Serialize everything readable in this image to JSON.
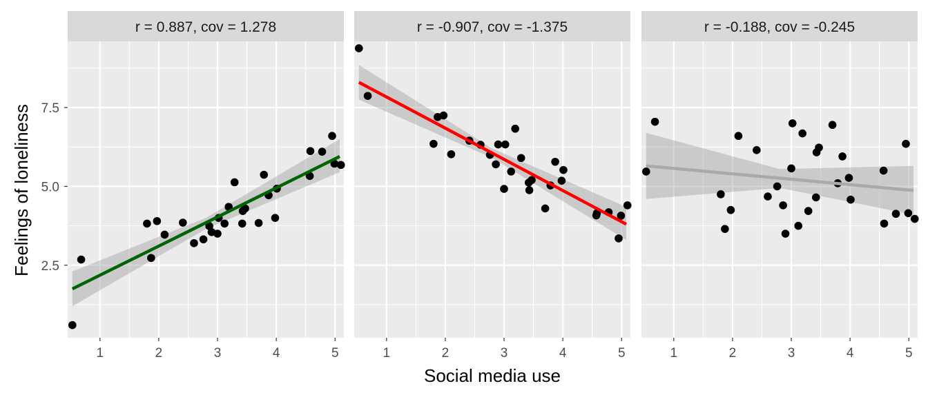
{
  "figure": {
    "xlabel": "Social media use",
    "ylabel": "Feelings of loneliness"
  },
  "chart_data": [
    {
      "type": "scatter",
      "title": "r = 0.887, cov = 1.278",
      "xlabel": "Social media use",
      "ylabel": "Feelings of loneliness",
      "xlim": [
        0.45,
        5.15
      ],
      "ylim": [
        0.2,
        9.6
      ],
      "x_ticks": [
        1,
        2,
        3,
        4,
        5
      ],
      "y_ticks": [
        2.5,
        5.0,
        7.5
      ],
      "y_tick_labels": [
        "2.5",
        "5.0",
        "7.5"
      ],
      "grid": true,
      "fit_color": "#006400",
      "fit_line": {
        "x": [
          0.53,
          5.08
        ],
        "y": [
          1.75,
          5.95
        ]
      },
      "ci_band": {
        "x": [
          0.53,
          2.8,
          5.08
        ],
        "lower": [
          1.2,
          3.65,
          5.45
        ],
        "upper": [
          2.3,
          4.0,
          6.5
        ]
      },
      "points": [
        {
          "x": 0.53,
          "y": 0.6
        },
        {
          "x": 0.68,
          "y": 2.68
        },
        {
          "x": 1.8,
          "y": 3.82
        },
        {
          "x": 1.87,
          "y": 2.73
        },
        {
          "x": 1.97,
          "y": 3.9
        },
        {
          "x": 2.1,
          "y": 3.47
        },
        {
          "x": 2.41,
          "y": 3.85
        },
        {
          "x": 2.6,
          "y": 3.2
        },
        {
          "x": 2.76,
          "y": 3.32
        },
        {
          "x": 2.86,
          "y": 3.74
        },
        {
          "x": 2.9,
          "y": 3.55
        },
        {
          "x": 3.0,
          "y": 3.5
        },
        {
          "x": 3.02,
          "y": 4.0
        },
        {
          "x": 3.12,
          "y": 3.82
        },
        {
          "x": 3.19,
          "y": 4.35
        },
        {
          "x": 3.29,
          "y": 5.13
        },
        {
          "x": 3.42,
          "y": 3.82
        },
        {
          "x": 3.43,
          "y": 4.22
        },
        {
          "x": 3.47,
          "y": 4.3
        },
        {
          "x": 3.7,
          "y": 3.84
        },
        {
          "x": 3.79,
          "y": 5.37
        },
        {
          "x": 3.87,
          "y": 4.72
        },
        {
          "x": 3.98,
          "y": 4.0
        },
        {
          "x": 4.01,
          "y": 4.93
        },
        {
          "x": 4.57,
          "y": 5.33
        },
        {
          "x": 4.58,
          "y": 6.12
        },
        {
          "x": 4.78,
          "y": 6.1
        },
        {
          "x": 4.95,
          "y": 6.6
        },
        {
          "x": 4.99,
          "y": 5.72
        },
        {
          "x": 5.1,
          "y": 5.68
        }
      ]
    },
    {
      "type": "scatter",
      "title": "r = -0.907, cov = -1.375",
      "xlabel": "Social media use",
      "ylabel": "Feelings of loneliness",
      "xlim": [
        0.45,
        5.15
      ],
      "ylim": [
        0.2,
        9.6
      ],
      "x_ticks": [
        1,
        2,
        3,
        4,
        5
      ],
      "y_ticks": [
        2.5,
        5.0,
        7.5
      ],
      "y_tick_labels": [
        "2.5",
        "5.0",
        "7.5"
      ],
      "grid": true,
      "fit_color": "#ff0000",
      "fit_line": {
        "x": [
          0.53,
          5.08
        ],
        "y": [
          8.3,
          3.8
        ]
      },
      "ci_band": {
        "x": [
          0.53,
          2.8,
          5.08
        ],
        "lower": [
          7.75,
          5.9,
          3.3
        ],
        "upper": [
          8.85,
          6.2,
          4.35
        ]
      },
      "points": [
        {
          "x": 0.53,
          "y": 9.38
        },
        {
          "x": 0.68,
          "y": 7.87
        },
        {
          "x": 1.8,
          "y": 6.35
        },
        {
          "x": 1.87,
          "y": 7.2
        },
        {
          "x": 1.97,
          "y": 7.25
        },
        {
          "x": 2.1,
          "y": 6.02
        },
        {
          "x": 2.41,
          "y": 6.45
        },
        {
          "x": 2.6,
          "y": 6.32
        },
        {
          "x": 2.76,
          "y": 6.0
        },
        {
          "x": 2.86,
          "y": 5.7
        },
        {
          "x": 2.9,
          "y": 6.33
        },
        {
          "x": 3.0,
          "y": 4.92
        },
        {
          "x": 3.02,
          "y": 6.33
        },
        {
          "x": 3.12,
          "y": 5.47
        },
        {
          "x": 3.19,
          "y": 6.83
        },
        {
          "x": 3.29,
          "y": 5.9
        },
        {
          "x": 3.42,
          "y": 5.12
        },
        {
          "x": 3.43,
          "y": 4.88
        },
        {
          "x": 3.47,
          "y": 5.2
        },
        {
          "x": 3.7,
          "y": 4.3
        },
        {
          "x": 3.79,
          "y": 5.03
        },
        {
          "x": 3.87,
          "y": 5.78
        },
        {
          "x": 3.98,
          "y": 5.18
        },
        {
          "x": 4.01,
          "y": 5.52
        },
        {
          "x": 4.57,
          "y": 4.08
        },
        {
          "x": 4.58,
          "y": 4.15
        },
        {
          "x": 4.78,
          "y": 4.18
        },
        {
          "x": 4.95,
          "y": 3.35
        },
        {
          "x": 4.99,
          "y": 4.07
        },
        {
          "x": 5.1,
          "y": 4.4
        }
      ]
    },
    {
      "type": "scatter",
      "title": "r = -0.188, cov = -0.245",
      "xlabel": "Social media use",
      "ylabel": "Feelings of loneliness",
      "xlim": [
        0.45,
        5.15
      ],
      "ylim": [
        0.2,
        9.6
      ],
      "x_ticks": [
        1,
        2,
        3,
        4,
        5
      ],
      "y_ticks": [
        2.5,
        5.0,
        7.5
      ],
      "y_tick_labels": [
        "2.5",
        "5.0",
        "7.5"
      ],
      "grid": true,
      "fit_color": "#a9a9a9",
      "fit_line": {
        "x": [
          0.53,
          5.08
        ],
        "y": [
          5.65,
          4.87
        ]
      },
      "ci_band": {
        "x": [
          0.53,
          2.8,
          5.08
        ],
        "lower": [
          4.6,
          4.95,
          4.1
        ],
        "upper": [
          6.7,
          5.55,
          5.65
        ]
      },
      "points": [
        {
          "x": 0.53,
          "y": 5.47
        },
        {
          "x": 0.68,
          "y": 7.05
        },
        {
          "x": 1.8,
          "y": 4.75
        },
        {
          "x": 1.87,
          "y": 3.65
        },
        {
          "x": 1.97,
          "y": 4.25
        },
        {
          "x": 2.1,
          "y": 6.6
        },
        {
          "x": 2.41,
          "y": 6.15
        },
        {
          "x": 2.6,
          "y": 4.68
        },
        {
          "x": 2.76,
          "y": 5.0
        },
        {
          "x": 2.86,
          "y": 4.4
        },
        {
          "x": 2.9,
          "y": 3.5
        },
        {
          "x": 3.0,
          "y": 5.57
        },
        {
          "x": 3.02,
          "y": 7.0
        },
        {
          "x": 3.12,
          "y": 3.75
        },
        {
          "x": 3.19,
          "y": 6.68
        },
        {
          "x": 3.29,
          "y": 4.22
        },
        {
          "x": 3.42,
          "y": 4.65
        },
        {
          "x": 3.43,
          "y": 6.08
        },
        {
          "x": 3.47,
          "y": 6.23
        },
        {
          "x": 3.7,
          "y": 6.95
        },
        {
          "x": 3.79,
          "y": 5.1
        },
        {
          "x": 3.87,
          "y": 5.95
        },
        {
          "x": 3.98,
          "y": 5.27
        },
        {
          "x": 4.01,
          "y": 4.58
        },
        {
          "x": 4.57,
          "y": 5.5
        },
        {
          "x": 4.58,
          "y": 3.82
        },
        {
          "x": 4.78,
          "y": 4.13
        },
        {
          "x": 4.95,
          "y": 6.35
        },
        {
          "x": 4.99,
          "y": 4.15
        },
        {
          "x": 5.1,
          "y": 3.97
        }
      ]
    }
  ]
}
